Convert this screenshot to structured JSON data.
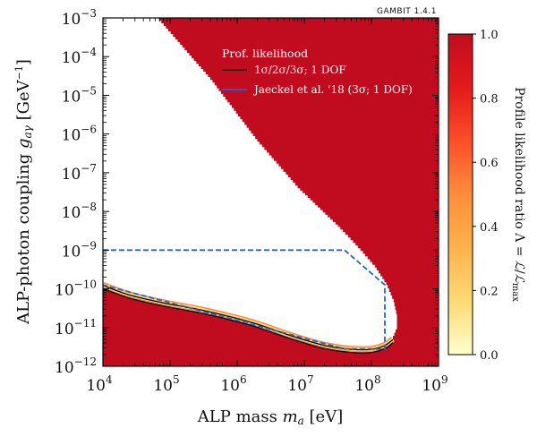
{
  "chart_data": {
    "type": "heatmap",
    "version": "GAMBIT 1.4.1",
    "xlabel": "ALP mass m_a [eV]",
    "ylabel": "ALP-photon coupling g_aγ [GeV⁻¹]",
    "xscale": "log",
    "yscale": "log",
    "xlim": [
      10000,
      1000000000
    ],
    "ylim": [
      1e-12,
      0.001
    ],
    "x_ticks": [
      {
        "value": 4,
        "label": "10",
        "exp": "4"
      },
      {
        "value": 5,
        "label": "10",
        "exp": "5"
      },
      {
        "value": 6,
        "label": "10",
        "exp": "6"
      },
      {
        "value": 7,
        "label": "10",
        "exp": "7"
      },
      {
        "value": 8,
        "label": "10",
        "exp": "8"
      },
      {
        "value": 9,
        "label": "10",
        "exp": "9"
      }
    ],
    "y_ticks": [
      {
        "value": -12,
        "label": "10",
        "exp": "−12"
      },
      {
        "value": -11,
        "label": "10",
        "exp": "−11"
      },
      {
        "value": -10,
        "label": "10",
        "exp": "−10"
      },
      {
        "value": -9,
        "label": "10",
        "exp": "−9"
      },
      {
        "value": -8,
        "label": "10",
        "exp": "−8"
      },
      {
        "value": -7,
        "label": "10",
        "exp": "−7"
      },
      {
        "value": -6,
        "label": "10",
        "exp": "−6"
      },
      {
        "value": -5,
        "label": "10",
        "exp": "−5"
      },
      {
        "value": -4,
        "label": "10",
        "exp": "−4"
      },
      {
        "value": -3,
        "label": "10",
        "exp": "−3"
      }
    ],
    "colorbar": {
      "label": "Profile likelihood ratio Λ = ℒ/ℒmax",
      "range": [
        0,
        1
      ],
      "ticks": [
        "0.0",
        "0.2",
        "0.4",
        "0.6",
        "0.8",
        "1.0"
      ],
      "colors": [
        "#ffffcc",
        "#fed976",
        "#feb24c",
        "#fd8d3c",
        "#fc4e2a",
        "#e31a1c",
        "#c10c1f"
      ]
    },
    "allowed_region_boundary": {
      "upper": [
        [
          4.0,
          -3.0
        ],
        [
          4.8,
          -3.0
        ],
        [
          5.6,
          -4.6
        ],
        [
          6.3,
          -6.2
        ],
        [
          6.9,
          -7.4
        ],
        [
          7.5,
          -8.4
        ],
        [
          7.8,
          -8.95
        ],
        [
          8.05,
          -9.45
        ],
        [
          8.22,
          -9.9
        ],
        [
          8.33,
          -10.35
        ],
        [
          8.38,
          -10.75
        ],
        [
          8.38,
          -11.05
        ],
        [
          8.32,
          -11.3
        ]
      ],
      "lower": [
        [
          8.32,
          -11.3
        ],
        [
          8.2,
          -11.45
        ],
        [
          8.0,
          -11.55
        ],
        [
          7.7,
          -11.55
        ],
        [
          7.3,
          -11.45
        ],
        [
          6.8,
          -11.2
        ],
        [
          6.2,
          -10.85
        ],
        [
          5.5,
          -10.55
        ],
        [
          4.9,
          -10.35
        ],
        [
          4.4,
          -10.15
        ],
        [
          4.0,
          -9.9
        ]
      ]
    },
    "series": [
      {
        "name": "Jaeckel et al. '18 (3σ; 1 DOF)",
        "color": "#2563d9",
        "points": [
          [
            4.0,
            -9.0
          ],
          [
            7.6,
            -9.0
          ],
          [
            8.2,
            -9.9
          ],
          [
            8.2,
            -11.55
          ],
          [
            7.6,
            -11.55
          ],
          [
            4.0,
            -9.9
          ]
        ]
      }
    ],
    "legend": {
      "title": "Prof. likelihood",
      "entries": [
        {
          "label": "1σ/2σ/3σ; 1 DOF",
          "color": "#000000"
        },
        {
          "label": "Jaeckel et al. '18 (3σ; 1 DOF)",
          "color": "#2563d9"
        }
      ]
    }
  }
}
